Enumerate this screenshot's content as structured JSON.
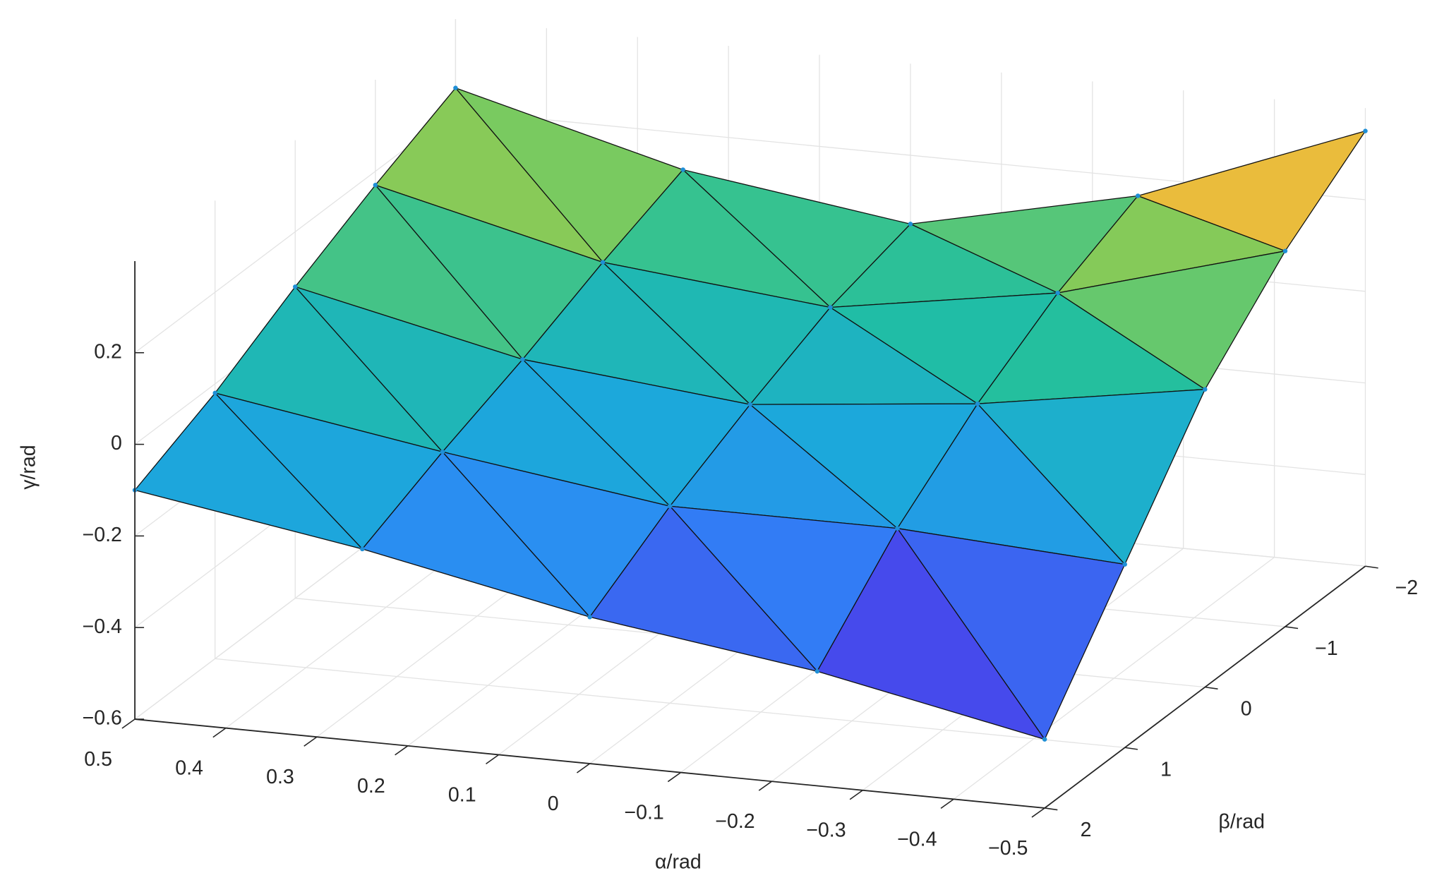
{
  "chart_data": {
    "type": "surface",
    "x_label": "α/rad",
    "y_label": "β/rad",
    "z_label": "γ/rad",
    "x": [
      -0.5,
      -0.25,
      0,
      0.25,
      0.5
    ],
    "y": [
      -2,
      -1,
      0,
      1,
      2
    ],
    "z": [
      [
        0.35,
        0.16,
        0.05,
        0.12,
        0.25
      ],
      [
        0.22,
        0.08,
        0.0,
        0.05,
        0.17
      ],
      [
        0.05,
        -0.03,
        -0.08,
        -0.03,
        0.08
      ],
      [
        -0.2,
        -0.17,
        -0.17,
        -0.1,
        -0.02
      ],
      [
        -0.45,
        -0.35,
        -0.28,
        -0.18,
        -0.1
      ]
    ],
    "xlim": [
      -0.5,
      0.5
    ],
    "ylim": [
      -2,
      2
    ],
    "zlim": [
      -0.6,
      0.4
    ],
    "xticks": [
      0.5,
      0.4,
      0.3,
      0.2,
      0.1,
      0,
      {
        "value": -0.1,
        "label": "−0.1"
      },
      {
        "value": -0.2,
        "label": "−0.2"
      },
      {
        "value": -0.3,
        "label": "−0.3"
      },
      {
        "value": -0.4,
        "label": "−0.4"
      },
      {
        "value": -0.5,
        "label": "−0.5"
      }
    ],
    "yticks": [
      {
        "value": -2,
        "label": "−2"
      },
      {
        "value": -1,
        "label": "−1"
      },
      0,
      1,
      2
    ],
    "zticks": [
      {
        "value": -0.6,
        "label": "−0.6"
      },
      {
        "value": -0.4,
        "label": "−0.4"
      },
      {
        "value": -0.2,
        "label": "−0.2"
      },
      0,
      0.2
    ],
    "grid": true
  }
}
